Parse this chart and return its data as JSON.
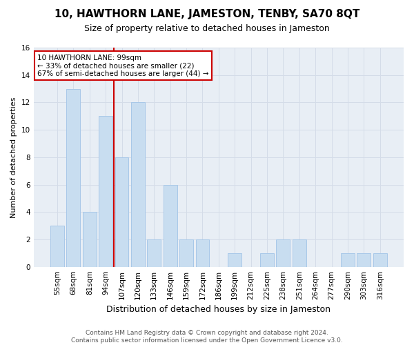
{
  "title": "10, HAWTHORN LANE, JAMESTON, TENBY, SA70 8QT",
  "subtitle": "Size of property relative to detached houses in Jameston",
  "xlabel": "Distribution of detached houses by size in Jameston",
  "ylabel": "Number of detached properties",
  "categories": [
    "55sqm",
    "68sqm",
    "81sqm",
    "94sqm",
    "107sqm",
    "120sqm",
    "133sqm",
    "146sqm",
    "159sqm",
    "172sqm",
    "186sqm",
    "199sqm",
    "212sqm",
    "225sqm",
    "238sqm",
    "251sqm",
    "264sqm",
    "277sqm",
    "290sqm",
    "303sqm",
    "316sqm"
  ],
  "values": [
    3,
    13,
    4,
    11,
    8,
    12,
    2,
    6,
    2,
    2,
    0,
    1,
    0,
    1,
    2,
    2,
    0,
    0,
    1,
    1,
    1
  ],
  "bar_color": "#c8ddf0",
  "bar_edge_color": "#a8c8e8",
  "grid_color": "#d4dce8",
  "bg_color": "#e8eef5",
  "vline_color": "#cc0000",
  "vline_index": 3.5,
  "annotation_text": "10 HAWTHORN LANE: 99sqm\n← 33% of detached houses are smaller (22)\n67% of semi-detached houses are larger (44) →",
  "annotation_box_color": "#ffffff",
  "annotation_box_edge_color": "#cc0000",
  "footer": "Contains HM Land Registry data © Crown copyright and database right 2024.\nContains public sector information licensed under the Open Government Licence v3.0.",
  "ylim": [
    0,
    16
  ],
  "yticks": [
    0,
    2,
    4,
    6,
    8,
    10,
    12,
    14,
    16
  ],
  "title_fontsize": 11,
  "subtitle_fontsize": 9,
  "ylabel_fontsize": 8,
  "xlabel_fontsize": 9,
  "tick_fontsize": 7.5,
  "annotation_fontsize": 7.5,
  "footer_fontsize": 6.5
}
